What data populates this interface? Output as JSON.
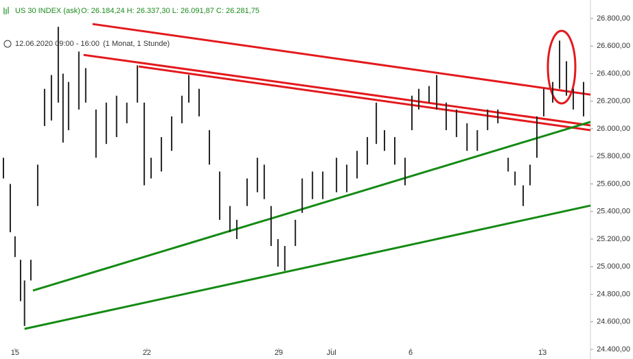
{
  "chart_data": {
    "type": "ohlc",
    "instrument": "US 30 INDEX (ask)",
    "quote": "O: 26.184,24  H: 26.337,30  L: 26.091,87  C: 26.281,75",
    "period": "12.06.2020 09:00 - 16:00",
    "range_note": "(1 Monat, 1 Stunde)",
    "bar_color": "#222222",
    "x": [
      -0.44,
      -0.18,
      0,
      0.21,
      0.36,
      0.6,
      0.86,
      1.12,
      1.38,
      1.64,
      1.82,
      2.03,
      2.42,
      2.68,
      3.07,
      3.46,
      3.85,
      4.24,
      4.64,
      4.9,
      5.16,
      5.55,
      5.94,
      6.33,
      6.59,
      6.98,
      7.37,
      7.76,
      8.15,
      8.41,
      8.8,
      9.19,
      9.45,
      9.71,
      9.97,
      10.23,
      10.63,
      10.89,
      11.28,
      11.67,
      12.19,
      12.58,
      12.97,
      13.36,
      13.7,
      14.01,
      14.4,
      14.79,
      15.05,
      15.31,
      15.7,
      15.99,
      16.35,
      16.74,
      17.14,
      17.53,
      17.92,
      18.31,
      18.7,
      18.96,
      19.27,
      19.53,
      19.79,
      20.05,
      20.39,
      20.65,
      20.91,
      21.17,
      21.56
    ],
    "low": [
      25640,
      25250,
      25070,
      24750,
      24570,
      24900,
      25440,
      26020,
      26060,
      26190,
      25900,
      25990,
      26140,
      26190,
      25790,
      25890,
      25940,
      26040,
      26190,
      25590,
      25640,
      25690,
      25840,
      26040,
      26190,
      26090,
      25740,
      25340,
      25250,
      25200,
      25440,
      25540,
      25490,
      25150,
      25000,
      24970,
      25150,
      25390,
      25490,
      25490,
      25540,
      25540,
      25640,
      25740,
      25890,
      25840,
      25740,
      25590,
      25990,
      26140,
      26190,
      26140,
      25990,
      25940,
      25840,
      25840,
      25990,
      26040,
      25690,
      25590,
      25440,
      25590,
      25790,
      26090,
      26190,
      26290,
      26240,
      26140,
      26090
    ],
    "high": [
      25790,
      25600,
      25220,
      25050,
      24900,
      25050,
      25740,
      26290,
      26390,
      26740,
      26400,
      26340,
      26560,
      26440,
      26140,
      26190,
      26240,
      26190,
      26460,
      26190,
      25790,
      25940,
      26090,
      26240,
      26390,
      26290,
      25990,
      25690,
      25440,
      25340,
      25640,
      25790,
      25740,
      25440,
      25200,
      25150,
      25340,
      25640,
      25690,
      25690,
      25790,
      25740,
      25840,
      25940,
      26190,
      25990,
      25940,
      25790,
      26240,
      26290,
      26310,
      26390,
      26190,
      26140,
      26040,
      25990,
      26140,
      26140,
      25790,
      25690,
      25590,
      25740,
      26090,
      26290,
      26340,
      26640,
      26490,
      26290,
      26340
    ],
    "trendlines": [
      {
        "color": "#e3191c",
        "x": [
          2.94,
          21.82
        ],
        "y": [
          26760,
          26248
        ]
      },
      {
        "color": "#e3191c",
        "x": [
          2.6,
          21.82
        ],
        "y": [
          26536,
          26025
        ]
      },
      {
        "color": "#e3191c",
        "x": [
          4.69,
          21.82
        ],
        "y": [
          26452,
          25990
        ]
      },
      {
        "color": "#138a13",
        "x": [
          0.68,
          21.82
        ],
        "y": [
          24827,
          26050
        ]
      },
      {
        "color": "#138a13",
        "x": [
          0.36,
          21.82
        ],
        "y": [
          24549,
          25443
        ]
      }
    ],
    "xlim": [
      -0.57,
      21.82
    ],
    "ylim": [
      24400,
      26800
    ],
    "xticks": [
      {
        "value": 0,
        "label": "15"
      },
      {
        "value": 5,
        "label": "22"
      },
      {
        "value": 10,
        "label": "29"
      },
      {
        "value": 12,
        "label": "Jul"
      },
      {
        "value": 15,
        "label": "6"
      },
      {
        "value": 20,
        "label": "13"
      }
    ],
    "yticks": [
      {
        "value": 24400,
        "label": "24.400,00"
      },
      {
        "value": 24600,
        "label": "24.600,00"
      },
      {
        "value": 24800,
        "label": "24.800,00"
      },
      {
        "value": 25000,
        "label": "25.000,00"
      },
      {
        "value": 25200,
        "label": "25.200,00"
      },
      {
        "value": 25400,
        "label": "25.400,00"
      },
      {
        "value": 25600,
        "label": "25.600,00"
      },
      {
        "value": 25800,
        "label": "25.800,00"
      },
      {
        "value": 26000,
        "label": "26.000,00"
      },
      {
        "value": 26200,
        "label": "26.200,00"
      },
      {
        "value": 26400,
        "label": "26.400,00"
      },
      {
        "value": 26600,
        "label": "26.600,00"
      },
      {
        "value": 26800,
        "label": "26.800,00"
      }
    ]
  }
}
